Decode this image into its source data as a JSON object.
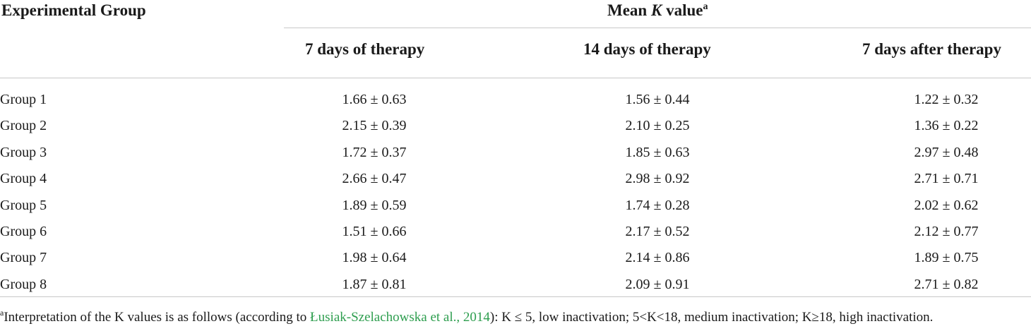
{
  "table": {
    "header_group": "Experimental Group",
    "header_mean_prefix": "Mean ",
    "header_mean_k": "K",
    "header_mean_suffix": " value",
    "header_mean_sup": "a",
    "columns": [
      "7 days of therapy",
      "14 days of therapy",
      "7 days after therapy"
    ],
    "rows": [
      {
        "group": "Group 1",
        "values": [
          "1.66 ± 0.63",
          "1.56 ± 0.44",
          "1.22 ± 0.32"
        ]
      },
      {
        "group": "Group 2",
        "values": [
          "2.15 ± 0.39",
          "2.10 ± 0.25",
          "1.36 ± 0.22"
        ]
      },
      {
        "group": "Group 3",
        "values": [
          "1.72 ± 0.37",
          "1.85 ± 0.63",
          "2.97 ± 0.48"
        ]
      },
      {
        "group": "Group 4",
        "values": [
          "2.66 ± 0.47",
          "2.98 ± 0.92",
          "2.71 ± 0.71"
        ]
      },
      {
        "group": "Group 5",
        "values": [
          "1.89 ± 0.59",
          "1.74 ± 0.28",
          "2.02 ± 0.62"
        ]
      },
      {
        "group": "Group 6",
        "values": [
          "1.51 ± 0.66",
          "2.17 ± 0.52",
          "2.12 ± 0.77"
        ]
      },
      {
        "group": "Group 7",
        "values": [
          "1.98 ± 0.64",
          "2.14 ± 0.86",
          "1.89 ± 0.75"
        ]
      },
      {
        "group": "Group 8",
        "values": [
          "1.87 ± 0.81",
          "2.09 ± 0.91",
          "2.71 ± 0.82"
        ]
      }
    ]
  },
  "footnote": {
    "marker": "a",
    "text_before": "Interpretation of the K values is as follows (according to ",
    "citation": "Łusiak-Szelachowska et al., 2014",
    "text_after": "): K ≤ 5, low inactivation; 5<K<18, medium inactivation; K≥18, high inactivation."
  },
  "colors": {
    "citation": "#2e9e4f",
    "rule": "#c8c8c8"
  }
}
